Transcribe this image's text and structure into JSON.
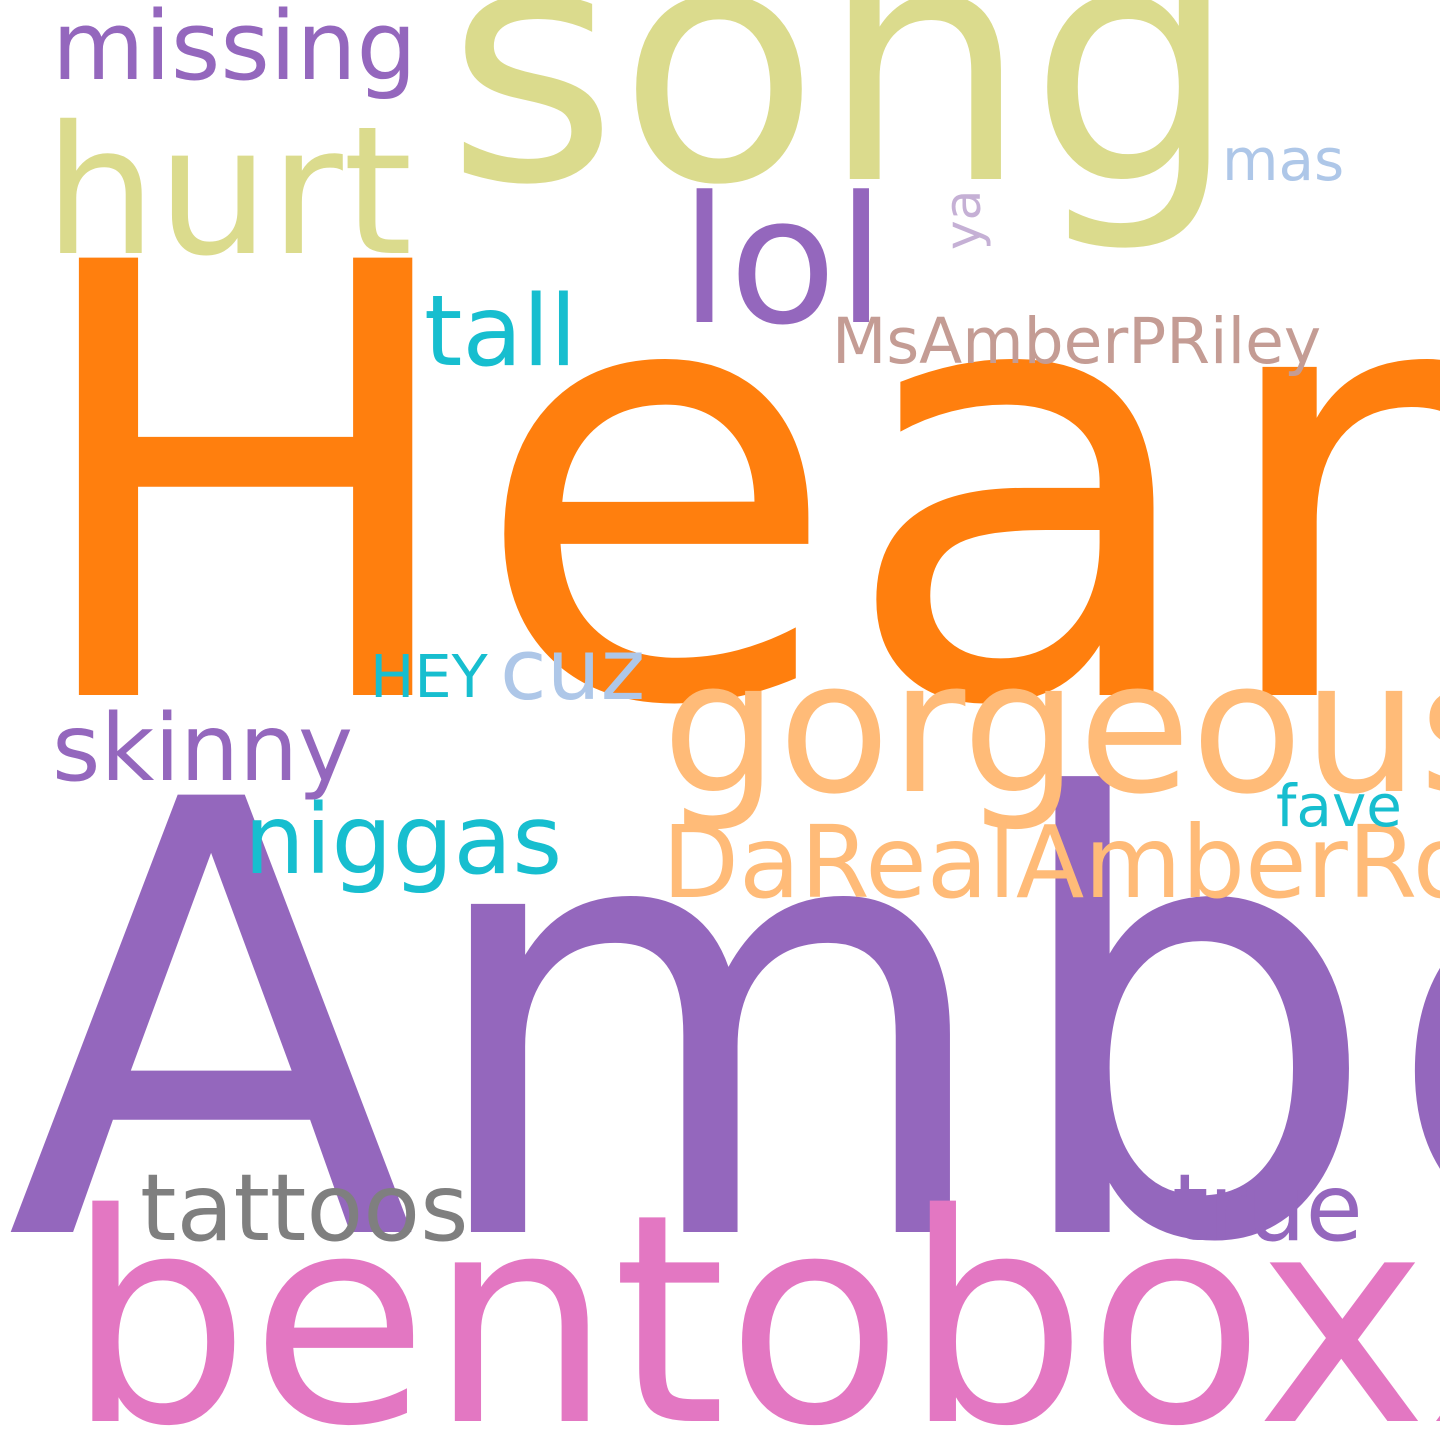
{
  "words": [
    {
      "key": "heard",
      "text": "Heard",
      "color": "#ff7f0e"
    },
    {
      "key": "amber",
      "text": "Amber",
      "color": "#9467bd"
    },
    {
      "key": "song",
      "text": "song",
      "color": "#dbdb8d"
    },
    {
      "key": "bentoboxx",
      "text": "bentoboxx",
      "color": "#e377c2"
    },
    {
      "key": "hurt",
      "text": "hurt",
      "color": "#dbdb8d"
    },
    {
      "key": "gorgeous",
      "text": "gorgeous",
      "color": "#ffbb78"
    },
    {
      "key": "lol",
      "text": "lol",
      "color": "#9467bd"
    },
    {
      "key": "darealamberrose",
      "text": "DaRealAmberRose",
      "color": "#ffbb78"
    },
    {
      "key": "missing",
      "text": "missing",
      "color": "#9467bd"
    },
    {
      "key": "tall",
      "text": "tall",
      "color": "#17becf"
    },
    {
      "key": "niggas",
      "text": "niggas",
      "color": "#17becf"
    },
    {
      "key": "skinny",
      "text": "skinny",
      "color": "#9467bd"
    },
    {
      "key": "tattoos",
      "text": "tattoos",
      "color": "#7f7f7f"
    },
    {
      "key": "true",
      "text": "true",
      "color": "#9467bd"
    },
    {
      "key": "msamberpriley",
      "text": "MsAmberPRiley",
      "color": "#c49c94"
    },
    {
      "key": "cuz",
      "text": "cuz",
      "color": "#aec7e8"
    },
    {
      "key": "hey",
      "text": "HEY",
      "color": "#17becf"
    },
    {
      "key": "fave",
      "text": "fave",
      "color": "#17becf"
    },
    {
      "key": "mas",
      "text": "mas",
      "color": "#aec7e8"
    },
    {
      "key": "ya",
      "text": "ya",
      "color": "#c5b0d5"
    }
  ]
}
